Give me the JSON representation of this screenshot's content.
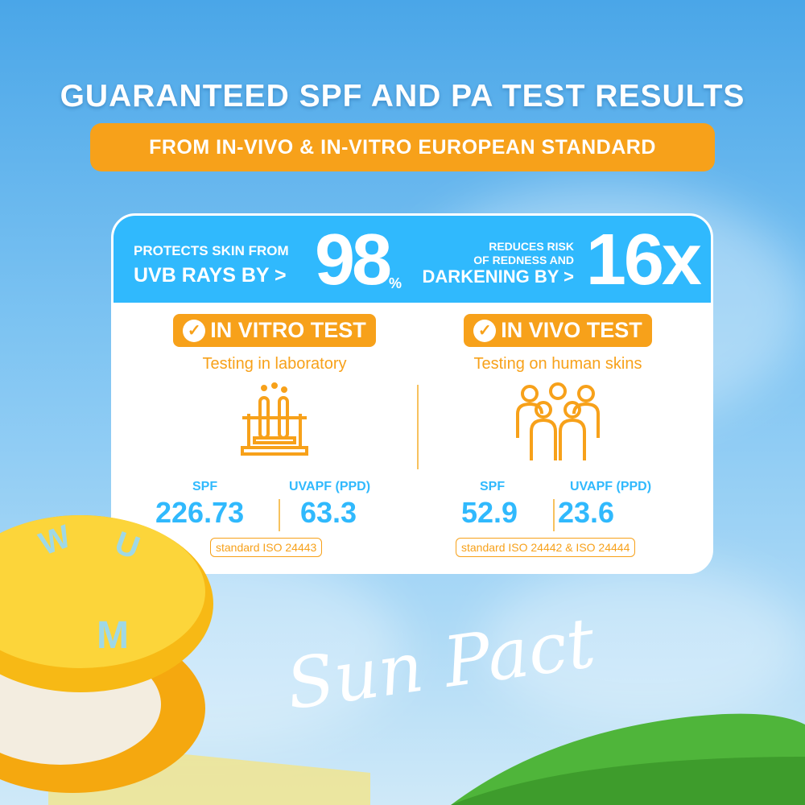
{
  "header": {
    "title": "GUARANTEED SPF AND PA TEST RESULTS",
    "subtitle": "FROM IN-VIVO & IN-VITRO EUROPEAN STANDARD"
  },
  "claims": {
    "left": {
      "line1": "PROTECTS SKIN FROM",
      "line2": "UVB RAYS BY >",
      "value": "98",
      "unit": "%"
    },
    "right": {
      "line1": "REDUCES RISK",
      "line2": "OF REDNESS AND",
      "line3": "DARKENING BY >",
      "value": "16x"
    }
  },
  "tests": [
    {
      "badge": "IN VITRO TEST",
      "desc": "Testing in laboratory",
      "icon": "test-tubes-icon",
      "spf_label": "SPF",
      "spf": "226.73",
      "uvapf_label": "UVAPF (PPD)",
      "uvapf": "63.3",
      "standard": "standard ISO 24443"
    },
    {
      "badge": "IN VIVO TEST",
      "desc": "Testing on human skins",
      "icon": "people-group-icon",
      "spf_label": "SPF",
      "spf": "52.9",
      "uvapf_label": "UVAPF (PPD)",
      "uvapf": "23.6",
      "standard": "standard ISO 24442 & ISO 24444"
    }
  ],
  "product": {
    "name_script": "Sun Pact",
    "logo_letter": "M"
  },
  "colors": {
    "accent_orange": "#f7a11a",
    "accent_blue": "#30b9fd"
  }
}
